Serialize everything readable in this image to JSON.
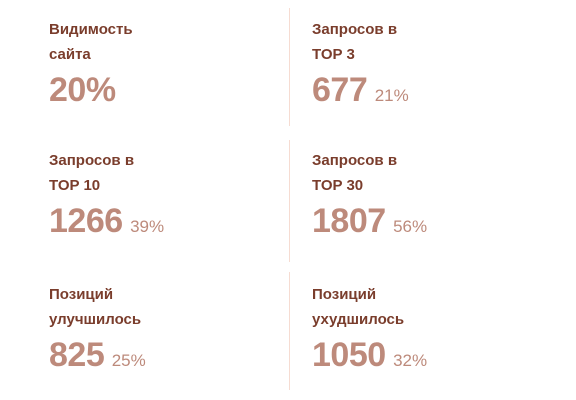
{
  "stats": [
    {
      "label": "Видимость\nсайта",
      "value": "20%",
      "percent": ""
    },
    {
      "label": "Запросов в\nTOP 3",
      "value": "677",
      "percent": "21%"
    },
    {
      "label": "Запросов в\nTOP 10",
      "value": "1266",
      "percent": "39%"
    },
    {
      "label": "Запросов в\nTOP 30",
      "value": "1807",
      "percent": "56%"
    },
    {
      "label": "Позиций\nулучшилось",
      "value": "825",
      "percent": "25%"
    },
    {
      "label": "Позиций\nухудшилось",
      "value": "1050",
      "percent": "32%"
    }
  ],
  "colors": {
    "label": "#7a3d2c",
    "value": "#bd8a7b",
    "divider": "#f6dcd2"
  }
}
